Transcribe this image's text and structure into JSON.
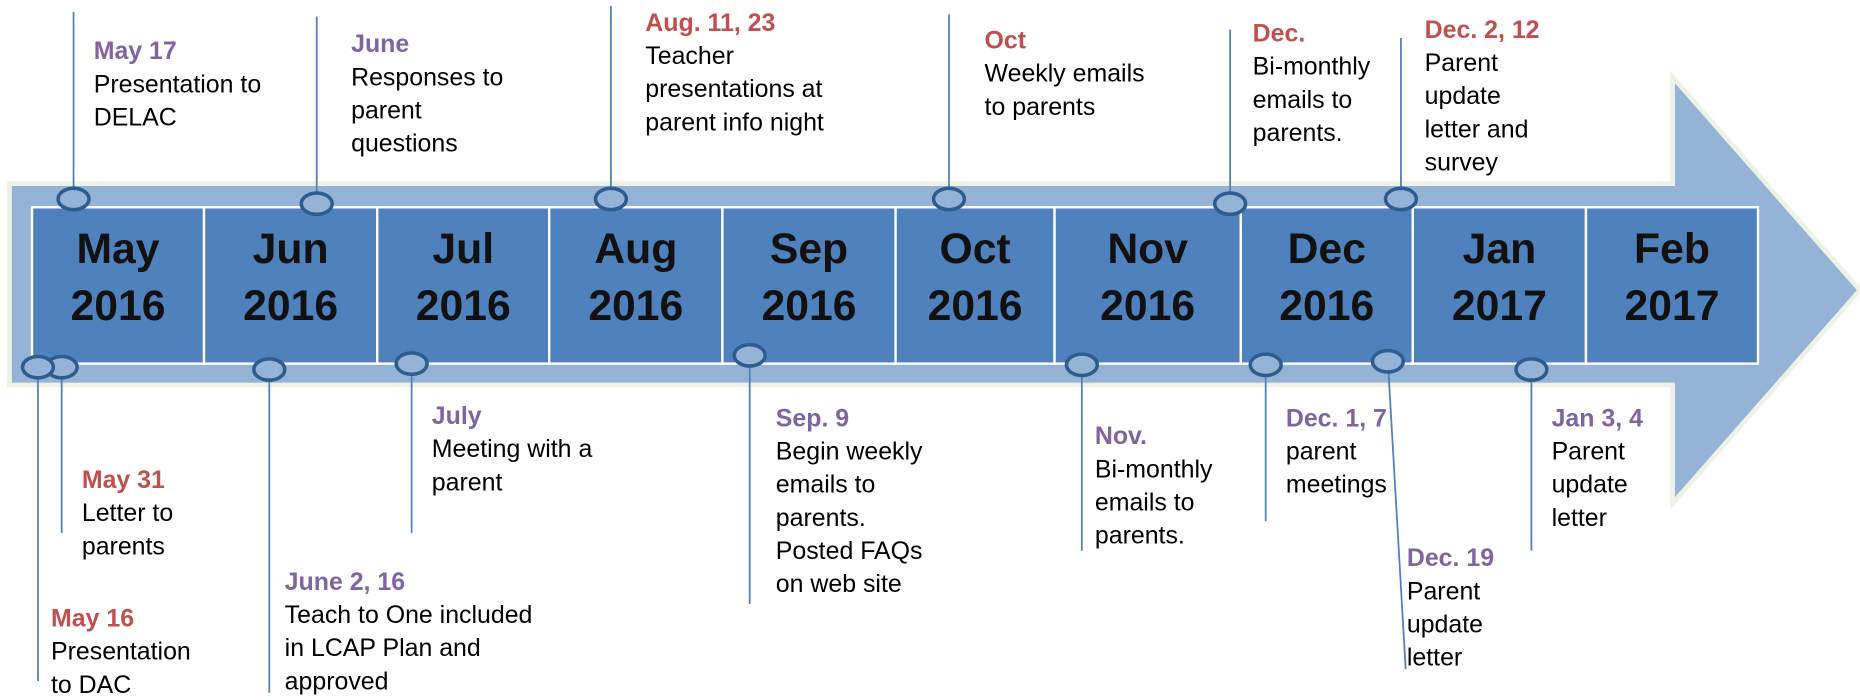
{
  "months": [
    {
      "name": "May",
      "year": "2016"
    },
    {
      "name": "Jun",
      "year": "2016"
    },
    {
      "name": "Jul",
      "year": "2016"
    },
    {
      "name": "Aug",
      "year": "2016"
    },
    {
      "name": "Sep",
      "year": "2016"
    },
    {
      "name": "Oct",
      "year": "2016"
    },
    {
      "name": "Nov",
      "year": "2016"
    },
    {
      "name": "Dec",
      "year": "2016"
    },
    {
      "name": "Jan",
      "year": "2017"
    },
    {
      "name": "Feb",
      "year": "2017"
    }
  ],
  "events": [
    {
      "date": "May 17",
      "color": "#8064a2",
      "lines": [
        "Presentation to",
        "DELAC"
      ]
    },
    {
      "date": "June",
      "color": "#8064a2",
      "lines": [
        "Responses to",
        "parent",
        "questions"
      ]
    },
    {
      "date": "Aug. 11, 23",
      "color": "#c0504d",
      "lines": [
        "Teacher",
        "presentations at",
        "parent info night"
      ]
    },
    {
      "date": "Oct",
      "color": "#c0504d",
      "lines": [
        "Weekly emails",
        "to parents"
      ]
    },
    {
      "date": "Dec.",
      "color": "#c0504d",
      "lines": [
        "Bi-monthly",
        "emails to",
        "parents."
      ]
    },
    {
      "date": "Dec. 2, 12",
      "color": "#c0504d",
      "lines": [
        "Parent",
        "update",
        "letter and",
        "survey"
      ]
    },
    {
      "date": "May 31",
      "color": "#c0504d",
      "lines": [
        "Letter to",
        "parents"
      ]
    },
    {
      "date": "May 16",
      "color": "#c0504d",
      "lines": [
        "Presentation",
        "to DAC"
      ]
    },
    {
      "date": "June 2, 16",
      "color": "#8064a2",
      "lines": [
        "Teach to One included",
        "in LCAP Plan and",
        "approved"
      ]
    },
    {
      "date": "July",
      "color": "#8064a2",
      "lines": [
        "Meeting with a",
        "parent"
      ]
    },
    {
      "date": "Sep. 9",
      "color": "#8064a2",
      "lines": [
        "Begin weekly",
        "emails to",
        "parents.",
        "Posted FAQs",
        "on web site"
      ]
    },
    {
      "date": "Nov.",
      "color": "#8064a2",
      "lines": [
        "Bi-monthly",
        "emails to",
        "parents."
      ]
    },
    {
      "date": "Dec. 1, 7",
      "color": "#8064a2",
      "lines": [
        "parent",
        "meetings"
      ]
    },
    {
      "date": "Dec. 19",
      "color": "#8064a2",
      "lines": [
        "Parent",
        "update",
        "letter"
      ]
    },
    {
      "date": "Jan 3, 4",
      "color": "#8064a2",
      "lines": [
        "Parent",
        "update",
        "letter"
      ]
    }
  ]
}
